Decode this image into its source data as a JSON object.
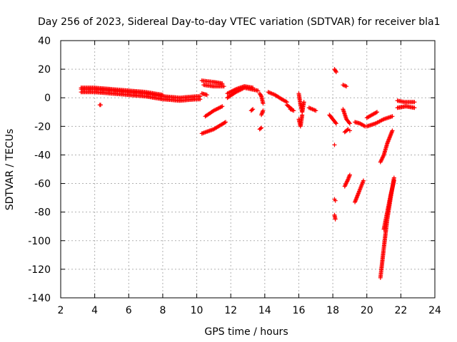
{
  "chart_data": {
    "type": "scatter",
    "title": "Day 256 of 2023, Sidereal Day-to-day VTEC variation (SDTVAR) for receiver bla1",
    "xlabel": "GPS time / hours",
    "ylabel": "SDTVAR / TECUs",
    "xlim": [
      2,
      24
    ],
    "ylim": [
      -140,
      40
    ],
    "xticks": [
      2,
      4,
      6,
      8,
      10,
      12,
      14,
      16,
      18,
      20,
      22,
      24
    ],
    "yticks": [
      -140,
      -120,
      -100,
      -80,
      -60,
      -40,
      -20,
      0,
      20,
      40
    ],
    "grid": true,
    "marker": "+",
    "series_color": "#ff0000",
    "series": [
      {
        "name": "SDTVAR",
        "segments": [
          {
            "x": [
              3.2,
              4.0,
              5.0,
              6.0,
              7.0,
              8.0,
              9.0,
              10.0,
              10.2
            ],
            "y": [
              6,
              6,
              5,
              4,
              3,
              1,
              0,
              1,
              1
            ]
          },
          {
            "x": [
              3.2,
              4.0,
              5.0,
              6.0,
              7.0,
              8.0,
              9.0,
              10.0,
              10.2
            ],
            "y": [
              4,
              4,
              3,
              2,
              1,
              -1,
              -2,
              -1,
              -1
            ]
          },
          {
            "x": [
              3.2,
              4.0,
              5.0,
              6.0,
              7.0,
              8.0
            ],
            "y": [
              7,
              7,
              6,
              5,
              4,
              2
            ]
          },
          {
            "x": [
              4.3,
              4.35
            ],
            "y": [
              -5,
              -5
            ]
          },
          {
            "x": [
              10.3,
              11.0,
              11.5
            ],
            "y": [
              12,
              11,
              10
            ]
          },
          {
            "x": [
              10.4,
              11.0,
              11.6
            ],
            "y": [
              9,
              8,
              8
            ]
          },
          {
            "x": [
              10.3,
              10.6
            ],
            "y": [
              3,
              2
            ]
          },
          {
            "x": [
              10.5,
              11.0,
              11.5
            ],
            "y": [
              -13,
              -9,
              -6
            ]
          },
          {
            "x": [
              10.3,
              11.0,
              11.7
            ],
            "y": [
              -25,
              -22,
              -17
            ]
          },
          {
            "x": [
              11.8,
              12.3,
              12.8,
              13.2,
              13.6
            ],
            "y": [
              0,
              4,
              7,
              6,
              5
            ]
          },
          {
            "x": [
              11.8,
              12.3,
              12.8,
              13.3
            ],
            "y": [
              3,
              6,
              8,
              7
            ]
          },
          {
            "x": [
              13.2,
              13.3
            ],
            "y": [
              -9,
              -8
            ]
          },
          {
            "x": [
              13.7,
              13.8,
              13.9
            ],
            "y": [
              3,
              1,
              -4
            ]
          },
          {
            "x": [
              13.8,
              13.9
            ],
            "y": [
              -12,
              -9
            ]
          },
          {
            "x": [
              13.7,
              13.8
            ],
            "y": [
              -22,
              -21
            ]
          },
          {
            "x": [
              14.2,
              14.6,
              15.0,
              15.3
            ],
            "y": [
              4,
              2,
              -1,
              -3
            ]
          },
          {
            "x": [
              15.3,
              15.6
            ],
            "y": [
              -5,
              -8
            ]
          },
          {
            "x": [
              15.5,
              15.7
            ],
            "y": [
              -8,
              -9
            ]
          },
          {
            "x": [
              16.0,
              16.1,
              16.2,
              16.3
            ],
            "y": [
              3,
              -5,
              -10,
              -3
            ]
          },
          {
            "x": [
              16.0,
              16.1,
              16.2
            ],
            "y": [
              -15,
              -20,
              -12
            ]
          },
          {
            "x": [
              16.6,
              17.0
            ],
            "y": [
              -7,
              -9
            ]
          },
          {
            "x": [
              17.8,
              18.0,
              18.2
            ],
            "y": [
              -12,
              -15,
              -18
            ]
          },
          {
            "x": [
              18.1,
              18.2
            ],
            "y": [
              20,
              18
            ]
          },
          {
            "x": [
              18.1
            ],
            "y": [
              -33
            ]
          },
          {
            "x": [
              18.1,
              18.15
            ],
            "y": [
              -71,
              -72
            ]
          },
          {
            "x": [
              18.1,
              18.15
            ],
            "y": [
              -82,
              -85
            ]
          },
          {
            "x": [
              18.6,
              18.8
            ],
            "y": [
              9,
              8
            ]
          },
          {
            "x": [
              18.6,
              18.8,
              19.0
            ],
            "y": [
              -8,
              -15,
              -18
            ]
          },
          {
            "x": [
              18.7,
              18.9
            ],
            "y": [
              -24,
              -22
            ]
          },
          {
            "x": [
              18.7,
              18.9,
              19.0
            ],
            "y": [
              -62,
              -57,
              -54
            ]
          },
          {
            "x": [
              19.0
            ],
            "y": [
              -23
            ]
          },
          {
            "x": [
              19.3,
              19.6,
              19.9
            ],
            "y": [
              -17,
              -18,
              -20
            ]
          },
          {
            "x": [
              19.3,
              19.5,
              19.8
            ],
            "y": [
              -73,
              -67,
              -58
            ]
          },
          {
            "x": [
              20.0,
              20.3,
              20.6
            ],
            "y": [
              -14,
              -12,
              -10
            ]
          },
          {
            "x": [
              20.0,
              20.5,
              21.0,
              21.5
            ],
            "y": [
              -20,
              -18,
              -15,
              -13
            ]
          },
          {
            "x": [
              20.8,
              21.0,
              21.2,
              21.5
            ],
            "y": [
              -45,
              -40,
              -32,
              -23
            ]
          },
          {
            "x": [
              20.8,
              21.0,
              21.2,
              21.4,
              21.6
            ],
            "y": [
              -126,
              -105,
              -85,
              -70,
              -56
            ]
          },
          {
            "x": [
              21.0,
              21.2,
              21.4,
              21.6
            ],
            "y": [
              -92,
              -80,
              -68,
              -58
            ]
          },
          {
            "x": [
              21.8,
              22.2,
              22.8
            ],
            "y": [
              -2,
              -3,
              -3
            ]
          },
          {
            "x": [
              21.8,
              22.3,
              22.8
            ],
            "y": [
              -7,
              -6,
              -7
            ]
          }
        ]
      }
    ]
  }
}
